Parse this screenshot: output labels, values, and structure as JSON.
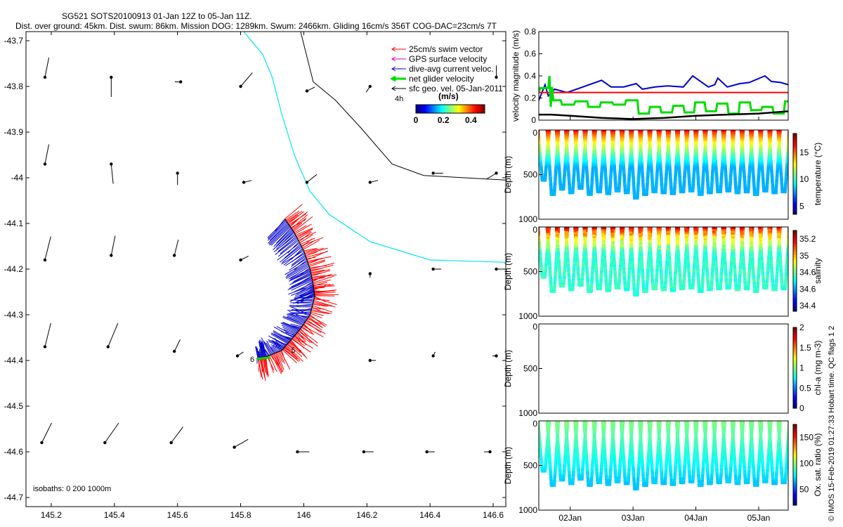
{
  "title": {
    "line1": "SG521 SOTS20100913 01-Jan 12Z to 05-Jan 11Z.",
    "line2": "Dist. over ground: 45km. Dist. swum: 86km. Mission DOG: 1289km. Swum: 2466km. Gliding 16cm/s 356T COG-DAC=23cm/s 7T"
  },
  "credit": "© IMOS 15-Feb-2019 01:27:33 Hobart time. QC flags 1  2",
  "colors": {
    "swim": "#ff0000",
    "gps": "#cc00cc",
    "dac": "#0000cc",
    "net": "#00dd00",
    "geo": "#000000",
    "isobath": "#00e5ee",
    "isobath_deep": "#000000"
  },
  "chart_data": [
    {
      "type": "scatter",
      "id": "map",
      "title": "Glider track and velocity map",
      "xlabel": "Longitude",
      "ylabel": "Latitude",
      "xlim": [
        145.12,
        146.64
      ],
      "ylim": [
        -44.72,
        -43.68
      ],
      "xticks": [
        145.2,
        145.4,
        145.6,
        145.8,
        146,
        146.2,
        146.4,
        146.6
      ],
      "yticks": [
        -43.7,
        -43.8,
        -43.9,
        -44,
        -44.1,
        -44.2,
        -44.3,
        -44.4,
        -44.5,
        -44.6,
        -44.7
      ],
      "tick_labels_x": [
        "145.2",
        "145.4",
        "145.6",
        "145.8",
        "146",
        "146.2",
        "146.4",
        "146.6"
      ],
      "tick_labels_y": [
        "-43.7",
        "-43.8",
        "-43.9",
        "-44",
        "-44.1",
        "-44.2",
        "-44.3",
        "-44.4",
        "-44.5",
        "-44.6",
        "-44.7"
      ],
      "legend": [
        {
          "label": "25cm/s swim vector",
          "color_key": "swim"
        },
        {
          "label": "GPS surface velocity",
          "color_key": "gps"
        },
        {
          "label": "dive-avg current veloc.",
          "color_key": "dac"
        },
        {
          "label": "net glider velocity",
          "color_key": "net"
        },
        {
          "label": "sfc geo. vel. 05-Jan-2011",
          "color_key": "geo"
        }
      ],
      "legend_extra": "4h",
      "colorbar": {
        "title": "(m/s)",
        "labels": [
          "0",
          "0.2",
          "0.4"
        ],
        "range": [
          0,
          0.5
        ]
      },
      "isobath_label": "isobaths: 0   200   1000m",
      "annotations": [
        {
          "text": "5",
          "lon": 145.96,
          "lat": -44.383
        },
        {
          "text": "6",
          "lon": 145.83,
          "lat": -44.403
        }
      ],
      "isobath_200": [
        [
          145.81,
          -43.68
        ],
        [
          145.87,
          -43.73
        ],
        [
          145.9,
          -43.78
        ],
        [
          145.93,
          -43.86
        ],
        [
          145.97,
          -43.95
        ],
        [
          146.02,
          -44.03
        ],
        [
          146.08,
          -44.08
        ],
        [
          146.21,
          -44.14
        ],
        [
          146.4,
          -44.18
        ],
        [
          146.64,
          -44.185
        ]
      ],
      "isobath_1000": [
        [
          145.99,
          -43.68
        ],
        [
          146.03,
          -43.79
        ],
        [
          146.1,
          -43.83
        ],
        [
          146.18,
          -43.89
        ],
        [
          146.28,
          -43.97
        ],
        [
          146.38,
          -43.995
        ],
        [
          146.64,
          -44.005
        ]
      ],
      "track": [
        [
          145.94,
          -44.09
        ],
        [
          145.97,
          -44.12
        ],
        [
          146.0,
          -44.16
        ],
        [
          146.02,
          -44.2
        ],
        [
          146.03,
          -44.235
        ],
        [
          146.035,
          -44.26
        ],
        [
          146.02,
          -44.3
        ],
        [
          145.99,
          -44.33
        ],
        [
          145.96,
          -44.355
        ],
        [
          145.93,
          -44.378
        ],
        [
          145.88,
          -44.392
        ],
        [
          145.85,
          -44.395
        ]
      ],
      "geo_vectors": [
        {
          "lon": 145.18,
          "lat": -43.78,
          "u": 0.02,
          "v": -0.1
        },
        {
          "lon": 145.39,
          "lat": -43.78,
          "u": 0.0,
          "v": 0.1
        },
        {
          "lon": 145.61,
          "lat": -43.79,
          "u": -0.03,
          "v": 0.0
        },
        {
          "lon": 145.8,
          "lat": -43.8,
          "u": 0.06,
          "v": -0.07
        },
        {
          "lon": 146.01,
          "lat": -43.81,
          "u": 0.04,
          "v": -0.02
        },
        {
          "lon": 146.21,
          "lat": -43.8,
          "u": -0.02,
          "v": 0.03
        },
        {
          "lon": 146.61,
          "lat": -43.78,
          "u": 0.0,
          "v": -0.06
        },
        {
          "lon": 145.18,
          "lat": -43.97,
          "u": 0.02,
          "v": -0.1
        },
        {
          "lon": 145.39,
          "lat": -43.97,
          "u": 0.01,
          "v": 0.1
        },
        {
          "lon": 145.6,
          "lat": -43.99,
          "u": 0.0,
          "v": 0.06
        },
        {
          "lon": 145.81,
          "lat": -44.01,
          "u": 0.04,
          "v": -0.01
        },
        {
          "lon": 146.01,
          "lat": -44.01,
          "u": 0.05,
          "v": -0.04
        },
        {
          "lon": 146.21,
          "lat": -44.01,
          "u": 0.04,
          "v": -0.01
        },
        {
          "lon": 146.41,
          "lat": -43.99,
          "u": 0.05,
          "v": 0.0
        },
        {
          "lon": 146.61,
          "lat": -43.99,
          "u": -0.05,
          "v": 0.03
        },
        {
          "lon": 145.18,
          "lat": -44.18,
          "u": 0.03,
          "v": -0.12
        },
        {
          "lon": 145.39,
          "lat": -44.17,
          "u": 0.02,
          "v": -0.1
        },
        {
          "lon": 145.59,
          "lat": -44.17,
          "u": 0.02,
          "v": -0.08
        },
        {
          "lon": 145.8,
          "lat": -44.18,
          "u": 0.04,
          "v": -0.02
        },
        {
          "lon": 146.21,
          "lat": -44.21,
          "u": 0.0,
          "v": 0.02
        },
        {
          "lon": 146.41,
          "lat": -44.2,
          "u": 0.04,
          "v": 0.0
        },
        {
          "lon": 146.61,
          "lat": -44.2,
          "u": 0.03,
          "v": 0.0
        },
        {
          "lon": 145.18,
          "lat": -44.37,
          "u": 0.03,
          "v": -0.12
        },
        {
          "lon": 145.38,
          "lat": -44.37,
          "u": 0.05,
          "v": -0.12
        },
        {
          "lon": 145.59,
          "lat": -44.38,
          "u": 0.03,
          "v": -0.06
        },
        {
          "lon": 145.79,
          "lat": -44.39,
          "u": 0.03,
          "v": -0.02
        },
        {
          "lon": 146.21,
          "lat": -44.4,
          "u": 0.03,
          "v": 0.0
        },
        {
          "lon": 146.41,
          "lat": -44.39,
          "u": 0.01,
          "v": -0.02
        },
        {
          "lon": 146.61,
          "lat": -44.39,
          "u": -0.02,
          "v": 0.0
        },
        {
          "lon": 145.17,
          "lat": -44.58,
          "u": 0.05,
          "v": -0.1
        },
        {
          "lon": 145.37,
          "lat": -44.58,
          "u": 0.07,
          "v": -0.1
        },
        {
          "lon": 145.58,
          "lat": -44.58,
          "u": 0.06,
          "v": -0.08
        },
        {
          "lon": 145.78,
          "lat": -44.59,
          "u": 0.07,
          "v": -0.04
        },
        {
          "lon": 145.98,
          "lat": -44.6,
          "u": 0.06,
          "v": 0.0
        },
        {
          "lon": 146.19,
          "lat": -44.6,
          "u": 0.05,
          "v": 0.0
        },
        {
          "lon": 146.39,
          "lat": -44.6,
          "u": 0.04,
          "v": 0.0
        },
        {
          "lon": 146.59,
          "lat": -44.6,
          "u": -0.03,
          "v": 0.0
        }
      ]
    },
    {
      "type": "line",
      "id": "velocity",
      "ylabel": "velocity magnitude (m/s)",
      "ylim": [
        0,
        0.8
      ],
      "yticks": [
        0,
        0.2,
        0.4,
        0.6,
        0.8
      ],
      "tick_labels_y": [
        "0",
        "0.2",
        "0.4",
        "0.6",
        "0.8"
      ],
      "xlim_days": [
        1.5,
        5.47
      ],
      "series": [
        {
          "name": "dive-avg current veloc.",
          "color_key": "dac",
          "x": [
            1.5,
            1.6,
            1.65,
            1.75,
            1.95,
            2.1,
            2.5,
            2.65,
            2.85,
            3.05,
            3.15,
            3.35,
            3.55,
            3.8,
            3.95,
            4.2,
            4.3,
            4.35,
            4.5,
            4.7,
            4.85,
            5.1,
            5.2,
            5.35,
            5.47
          ],
          "y": [
            0.18,
            0.32,
            0.22,
            0.28,
            0.25,
            0.28,
            0.36,
            0.3,
            0.3,
            0.33,
            0.28,
            0.3,
            0.31,
            0.3,
            0.4,
            0.3,
            0.32,
            0.38,
            0.3,
            0.33,
            0.34,
            0.4,
            0.35,
            0.34,
            0.32
          ]
        },
        {
          "name": "25cm/s swim vector",
          "color_key": "swim",
          "x": [
            1.5,
            5.47
          ],
          "y": [
            0.25,
            0.25
          ]
        },
        {
          "name": "net glider velocity",
          "color_key": "net",
          "x": [
            1.5,
            1.52,
            1.65,
            1.67,
            1.69,
            1.71,
            1.73,
            1.85,
            1.87,
            2.06,
            2.08,
            2.27,
            2.29,
            2.47,
            2.49,
            2.67,
            2.69,
            2.87,
            2.89,
            3.07,
            3.09,
            3.25,
            3.27,
            3.43,
            3.45,
            3.62,
            3.64,
            3.8,
            3.82,
            3.97,
            3.99,
            4.14,
            4.16,
            4.32,
            4.34,
            4.5,
            4.52,
            4.68,
            4.7,
            4.86,
            4.88,
            5.04,
            5.06,
            5.22,
            5.24,
            5.4,
            5.42,
            5.47
          ],
          "y": [
            0.25,
            0.29,
            0.29,
            0.4,
            0.12,
            0.3,
            0.18,
            0.18,
            0.14,
            0.14,
            0.17,
            0.17,
            0.12,
            0.12,
            0.16,
            0.16,
            0.14,
            0.14,
            0.18,
            0.18,
            0.06,
            0.06,
            0.12,
            0.12,
            0.07,
            0.07,
            0.13,
            0.13,
            0.07,
            0.07,
            0.16,
            0.16,
            0.08,
            0.08,
            0.15,
            0.15,
            0.06,
            0.06,
            0.16,
            0.16,
            0.09,
            0.09,
            0.12,
            0.12,
            0.06,
            0.06,
            0.17,
            0.17
          ]
        },
        {
          "name": "sfc geo. vel.",
          "color_key": "geo",
          "x": [
            1.5,
            1.7,
            2.0,
            2.5,
            3.0,
            3.5,
            4.0,
            4.5,
            5.0,
            5.47
          ],
          "y": [
            0.05,
            0.05,
            0.04,
            0.02,
            0.01,
            0.02,
            0.04,
            0.05,
            0.06,
            0.08
          ]
        }
      ]
    },
    {
      "type": "scatter",
      "id": "temperature",
      "ylabel": "Depth (m)",
      "ylim": [
        1000,
        0
      ],
      "yticks": [
        0,
        500,
        1000
      ],
      "tick_labels_y": [
        "0",
        "500",
        "1000"
      ],
      "colorbar": {
        "label": "temperature (°C)",
        "range": [
          3.5,
          18.5
        ],
        "ticks": [
          5,
          10,
          15
        ],
        "tick_labels": [
          "5",
          "10",
          "15"
        ]
      },
      "profile": {
        "surface_value": 17.5,
        "deep_value": 8.0,
        "noise": 0.2
      }
    },
    {
      "type": "scatter",
      "id": "salinity",
      "ylabel": "Depth (m)",
      "ylim": [
        1000,
        0
      ],
      "yticks": [
        0,
        500,
        1000
      ],
      "tick_labels_y": [
        "0",
        "500",
        "1000"
      ],
      "colorbar": {
        "label": "salinity",
        "tick_labels": [
          "35.2",
          "35",
          "34.6",
          "34.6",
          "34.4"
        ]
      },
      "profile": {
        "surface_value": 0.98,
        "deep_value": 0.42,
        "noise": 0.06
      }
    },
    {
      "type": "scatter",
      "id": "chla",
      "ylabel": "Depth (m)",
      "ylim": [
        1000,
        0
      ],
      "yticks": [
        0,
        500,
        1000
      ],
      "tick_labels_y": [
        "0",
        "500",
        "1000"
      ],
      "colorbar": {
        "label": "chl-a (mg m-3)",
        "range": [
          0,
          2
        ],
        "ticks": [
          0,
          0.5,
          1,
          1.5,
          2
        ],
        "tick_labels": [
          "0",
          "0.5",
          "1",
          "1.5",
          "2"
        ]
      },
      "profile": null
    },
    {
      "type": "scatter",
      "id": "oxygen",
      "ylabel": "Depth (m)",
      "ylim": [
        1000,
        0
      ],
      "yticks": [
        0,
        500,
        1000
      ],
      "tick_labels_y": [
        "0",
        "500",
        "1000"
      ],
      "xticks_days": [
        2.0,
        3.0,
        4.0,
        5.0
      ],
      "tick_labels_x": [
        "02Jan",
        "03Jan",
        "04Jan",
        "05Jan"
      ],
      "colorbar": {
        "label": "Ox. sat. ratio (%)",
        "range": [
          20,
          175
        ],
        "ticks": [
          50,
          100,
          150
        ],
        "tick_labels": [
          "50",
          "100",
          "150"
        ]
      },
      "profile": {
        "surface_value": 98,
        "deep_value": 70,
        "noise": 3
      }
    }
  ],
  "dives": {
    "count": 27,
    "x_start_day": 1.5,
    "x_end_day": 5.47,
    "max_depths_m": [
      560,
      720,
      660,
      700,
      650,
      720,
      690,
      710,
      680,
      700,
      760,
      720,
      690,
      700,
      710,
      690,
      680,
      720,
      700,
      690,
      680,
      700,
      690,
      720,
      680,
      700,
      690
    ]
  }
}
